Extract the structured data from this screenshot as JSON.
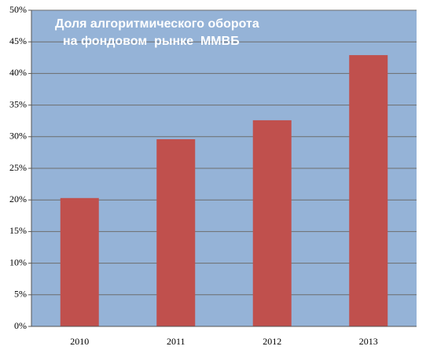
{
  "chart_data": {
    "type": "bar",
    "title": [
      "Доля алгоритмического оборота",
      "на фондовом  рынке  ММВБ"
    ],
    "categories": [
      "2010",
      "2011",
      "2012",
      "2013"
    ],
    "values": [
      20.3,
      29.6,
      32.6,
      42.9
    ],
    "color": "#c0504d",
    "ylim": [
      0,
      50
    ],
    "yticks": [
      {
        "value": 0,
        "label": "0%"
      },
      {
        "value": 5,
        "label": "5%"
      },
      {
        "value": 10,
        "label": "10%"
      },
      {
        "value": 15,
        "label": "15%"
      },
      {
        "value": 20,
        "label": "20%"
      },
      {
        "value": 25,
        "label": "25%"
      },
      {
        "value": 30,
        "label": "30%"
      },
      {
        "value": 35,
        "label": "35%"
      },
      {
        "value": 40,
        "label": "40%"
      },
      {
        "value": 45,
        "label": "45%"
      },
      {
        "value": 50,
        "label": "50%"
      }
    ],
    "grid": true
  }
}
